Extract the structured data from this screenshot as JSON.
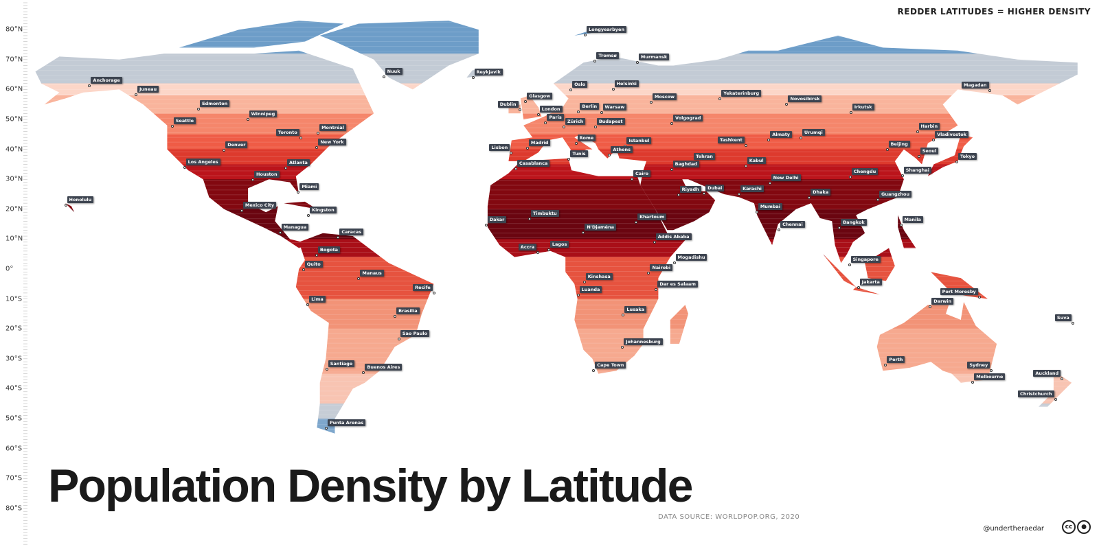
{
  "title": "Population Density by Latitude",
  "legend_note": "REDDER LATITUDES = HIGHER DENSITY",
  "source": "DATA SOURCE: WORLDPOP.ORG, 2020",
  "handle": "@undertheraedar",
  "license_icons": [
    "cc-icon",
    "attribution-icon"
  ],
  "license_cc_text": "cc",
  "latitude_axis": [
    "80°N",
    "70°N",
    "60°N",
    "50°N",
    "40°N",
    "30°N",
    "20°N",
    "10°N",
    "0°",
    "10°S",
    "20°S",
    "30°S",
    "40°S",
    "50°S",
    "60°S",
    "70°S",
    "80°S"
  ],
  "density_bands": [
    {
      "from": 90,
      "to": 72,
      "color": "#6d9dc8"
    },
    {
      "from": 72,
      "to": 62,
      "color": "#c3cbd5"
    },
    {
      "from": 62,
      "to": 58,
      "color": "#fcd6c8"
    },
    {
      "from": 58,
      "to": 52,
      "color": "#f9b49c"
    },
    {
      "from": 52,
      "to": 45,
      "color": "#f5866b"
    },
    {
      "from": 45,
      "to": 40,
      "color": "#ef5c46"
    },
    {
      "from": 40,
      "to": 35,
      "color": "#dd3a2d"
    },
    {
      "from": 35,
      "to": 30,
      "color": "#bb141b"
    },
    {
      "from": 30,
      "to": 20,
      "color": "#820810"
    },
    {
      "from": 20,
      "to": 10,
      "color": "#6a0510"
    },
    {
      "from": 10,
      "to": 4,
      "color": "#a90f18"
    },
    {
      "from": 4,
      "to": -10,
      "color": "#e6533f"
    },
    {
      "from": -10,
      "to": -20,
      "color": "#f29377"
    },
    {
      "from": -20,
      "to": -35,
      "color": "#f6a98f"
    },
    {
      "from": -35,
      "to": -45,
      "color": "#f8c4b2"
    },
    {
      "from": -45,
      "to": -50,
      "color": "#c6cdd6"
    },
    {
      "from": -50,
      "to": -90,
      "color": "#7ea7cc"
    }
  ],
  "cities": [
    {
      "name": "Anchorage",
      "lat": 61.2,
      "lon": -149.9
    },
    {
      "name": "Juneau",
      "lat": 58.3,
      "lon": -134.4
    },
    {
      "name": "Edmonton",
      "lat": 53.5,
      "lon": -113.5
    },
    {
      "name": "Winnipeg",
      "lat": 49.9,
      "lon": -97.1
    },
    {
      "name": "Seattle",
      "lat": 47.6,
      "lon": -122.3
    },
    {
      "name": "Toronto",
      "lat": 43.7,
      "lon": -79.4
    },
    {
      "name": "Montréal",
      "lat": 45.5,
      "lon": -73.6
    },
    {
      "name": "New York",
      "lat": 40.7,
      "lon": -74
    },
    {
      "name": "Denver",
      "lat": 39.7,
      "lon": -105
    },
    {
      "name": "Los Angeles",
      "lat": 34,
      "lon": -118.2
    },
    {
      "name": "Atlanta",
      "lat": 33.7,
      "lon": -84.4
    },
    {
      "name": "Houston",
      "lat": 29.8,
      "lon": -95.4
    },
    {
      "name": "Miami",
      "lat": 25.8,
      "lon": -80.2
    },
    {
      "name": "Mexico City",
      "lat": 19.4,
      "lon": -99.1
    },
    {
      "name": "Kingston",
      "lat": 18,
      "lon": -76.8
    },
    {
      "name": "Managua",
      "lat": 12.1,
      "lon": -86.3
    },
    {
      "name": "Caracas",
      "lat": 10.5,
      "lon": -66.9
    },
    {
      "name": "Bogota",
      "lat": 4.7,
      "lon": -74.1
    },
    {
      "name": "Quito",
      "lat": -0.2,
      "lon": -78.5
    },
    {
      "name": "Manaus",
      "lat": -3.1,
      "lon": -60
    },
    {
      "name": "Recife",
      "lat": -8,
      "lon": -34.9
    },
    {
      "name": "Lima",
      "lat": -12,
      "lon": -77
    },
    {
      "name": "Brasilia",
      "lat": -15.8,
      "lon": -47.9
    },
    {
      "name": "Sao Paulo",
      "lat": -23.5,
      "lon": -46.6
    },
    {
      "name": "Santiago",
      "lat": -33.4,
      "lon": -70.7
    },
    {
      "name": "Buenos Aires",
      "lat": -34.6,
      "lon": -58.4
    },
    {
      "name": "Punta Arenas",
      "lat": -53.2,
      "lon": -70.9
    },
    {
      "name": "Honolulu",
      "lat": 21.3,
      "lon": -157.9
    },
    {
      "name": "Nuuk",
      "lat": 64.2,
      "lon": -51.7
    },
    {
      "name": "Reykjavik",
      "lat": 64.1,
      "lon": -21.9
    },
    {
      "name": "Longyearbyen",
      "lat": 78.2,
      "lon": 15.6
    },
    {
      "name": "Tromsø",
      "lat": 69.6,
      "lon": 18.9
    },
    {
      "name": "Murmansk",
      "lat": 69,
      "lon": 33
    },
    {
      "name": "Oslo",
      "lat": 59.9,
      "lon": 10.8
    },
    {
      "name": "Helsinki",
      "lat": 60.2,
      "lon": 24.9
    },
    {
      "name": "Glasgow",
      "lat": 55.9,
      "lon": -4.3
    },
    {
      "name": "Dublin",
      "lat": 53.3,
      "lon": -6.3
    },
    {
      "name": "London",
      "lat": 51.5,
      "lon": -0.1
    },
    {
      "name": "Paris",
      "lat": 48.9,
      "lon": 2.4
    },
    {
      "name": "Berlin",
      "lat": 52.5,
      "lon": 13.4
    },
    {
      "name": "Warsaw",
      "lat": 52.2,
      "lon": 21
    },
    {
      "name": "Moscow",
      "lat": 55.8,
      "lon": 37.6
    },
    {
      "name": "Zürich",
      "lat": 47.4,
      "lon": 8.5
    },
    {
      "name": "Budapest",
      "lat": 47.5,
      "lon": 19
    },
    {
      "name": "Volgograd",
      "lat": 48.7,
      "lon": 44.5
    },
    {
      "name": "Yekaterinburg",
      "lat": 56.8,
      "lon": 60.6
    },
    {
      "name": "Novosibirsk",
      "lat": 55,
      "lon": 82.9
    },
    {
      "name": "Irkutsk",
      "lat": 52.3,
      "lon": 104.3
    },
    {
      "name": "Magadan",
      "lat": 59.6,
      "lon": 150.8
    },
    {
      "name": "Harbin",
      "lat": 45.8,
      "lon": 126.5
    },
    {
      "name": "Vladivostok",
      "lat": 43.1,
      "lon": 131.9
    },
    {
      "name": "Madrid",
      "lat": 40.4,
      "lon": -3.7
    },
    {
      "name": "Lisbon",
      "lat": 38.7,
      "lon": -9.1
    },
    {
      "name": "Rome",
      "lat": 41.9,
      "lon": 12.5
    },
    {
      "name": "Tunis",
      "lat": 36.8,
      "lon": 10.2
    },
    {
      "name": "Istanbul",
      "lat": 41,
      "lon": 29
    },
    {
      "name": "Athens",
      "lat": 38,
      "lon": 23.7
    },
    {
      "name": "Casablanca",
      "lat": 33.6,
      "lon": -7.6
    },
    {
      "name": "Tehran",
      "lat": 35.7,
      "lon": 51.4
    },
    {
      "name": "Baghdad",
      "lat": 33.3,
      "lon": 44.4
    },
    {
      "name": "Cairo",
      "lat": 30,
      "lon": 31.2
    },
    {
      "name": "Tashkent",
      "lat": 41.3,
      "lon": 69.2
    },
    {
      "name": "Almaty",
      "lat": 43.2,
      "lon": 76.9
    },
    {
      "name": "Urumqi",
      "lat": 43.8,
      "lon": 87.6
    },
    {
      "name": "Kabul",
      "lat": 34.5,
      "lon": 69.2
    },
    {
      "name": "Beijing",
      "lat": 39.9,
      "lon": 116.4
    },
    {
      "name": "Seoul",
      "lat": 37.6,
      "lon": 127
    },
    {
      "name": "Tokyo",
      "lat": 35.7,
      "lon": 139.7
    },
    {
      "name": "Shanghai",
      "lat": 31.2,
      "lon": 121.5
    },
    {
      "name": "Chengdu",
      "lat": 30.7,
      "lon": 104.1
    },
    {
      "name": "New Delhi",
      "lat": 28.6,
      "lon": 77.2
    },
    {
      "name": "Riyadh",
      "lat": 24.7,
      "lon": 46.7
    },
    {
      "name": "Dubai",
      "lat": 25.2,
      "lon": 55.3
    },
    {
      "name": "Karachi",
      "lat": 24.9,
      "lon": 67
    },
    {
      "name": "Dhaka",
      "lat": 23.8,
      "lon": 90.4
    },
    {
      "name": "Guangzhou",
      "lat": 23.1,
      "lon": 113.3
    },
    {
      "name": "Mumbai",
      "lat": 19.1,
      "lon": 72.9
    },
    {
      "name": "Bangkok",
      "lat": 13.8,
      "lon": 100.5
    },
    {
      "name": "Manila",
      "lat": 14.6,
      "lon": 121
    },
    {
      "name": "Chennai",
      "lat": 13.1,
      "lon": 80.3
    },
    {
      "name": "Timbuktu",
      "lat": 16.8,
      "lon": -3
    },
    {
      "name": "Dakar",
      "lat": 14.7,
      "lon": -17.5
    },
    {
      "name": "Khartoum",
      "lat": 15.5,
      "lon": 32.6
    },
    {
      "name": "N'Djaména",
      "lat": 12.1,
      "lon": 15
    },
    {
      "name": "Addis Ababa",
      "lat": 9,
      "lon": 38.7
    },
    {
      "name": "Accra",
      "lat": 5.6,
      "lon": -0.2
    },
    {
      "name": "Lagos",
      "lat": 6.5,
      "lon": 3.4
    },
    {
      "name": "Mogadishu",
      "lat": 2,
      "lon": 45.3
    },
    {
      "name": "Nairobi",
      "lat": -1.3,
      "lon": 36.8
    },
    {
      "name": "Kinshasa",
      "lat": -4.3,
      "lon": 15.3
    },
    {
      "name": "Luanda",
      "lat": -8.8,
      "lon": 13.2
    },
    {
      "name": "Dar es Salaam",
      "lat": -6.8,
      "lon": 39.3
    },
    {
      "name": "Lusaka",
      "lat": -15.4,
      "lon": 28.3
    },
    {
      "name": "Johannesburg",
      "lat": -26.2,
      "lon": 28
    },
    {
      "name": "Cape Town",
      "lat": -33.9,
      "lon": 18.4
    },
    {
      "name": "Singapore",
      "lat": 1.3,
      "lon": 103.8
    },
    {
      "name": "Jakarta",
      "lat": -6.2,
      "lon": 106.8
    },
    {
      "name": "Port Moresby",
      "lat": -9.4,
      "lon": 147.2
    },
    {
      "name": "Darwin",
      "lat": -12.5,
      "lon": 130.8
    },
    {
      "name": "Perth",
      "lat": -32,
      "lon": 115.9
    },
    {
      "name": "Sydney",
      "lat": -33.9,
      "lon": 151.2
    },
    {
      "name": "Melbourne",
      "lat": -37.8,
      "lon": 145
    },
    {
      "name": "Auckland",
      "lat": -36.8,
      "lon": 174.8
    },
    {
      "name": "Christchurch",
      "lat": -43.5,
      "lon": 172.6
    },
    {
      "name": "Suva",
      "lat": -18.1,
      "lon": 178.4
    }
  ]
}
